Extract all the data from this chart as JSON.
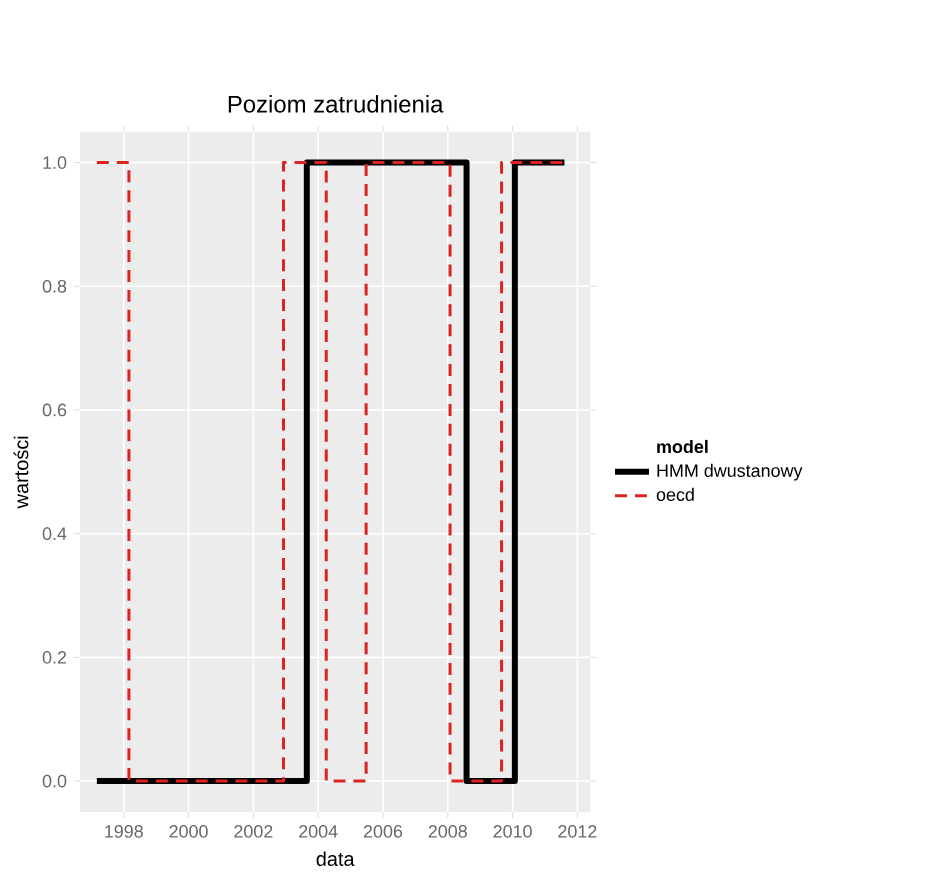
{
  "chart_data": {
    "type": "step",
    "title": "Poziom zatrudnienia",
    "xlabel": "data",
    "ylabel": "wartości",
    "legend_title": "model",
    "xlim": [
      1996.65,
      2012.4
    ],
    "ylim": [
      -0.05,
      1.05
    ],
    "xticks": [
      1998,
      2000,
      2002,
      2004,
      2006,
      2008,
      2010,
      2012
    ],
    "yticks": [
      {
        "value": 0,
        "label": "0.0"
      },
      {
        "value": 0.2,
        "label": "0.2"
      },
      {
        "value": 0.4,
        "label": "0.4"
      },
      {
        "value": 0.6,
        "label": "0.6"
      },
      {
        "value": 0.8,
        "label": "0.8"
      },
      {
        "value": 1,
        "label": "1.0"
      }
    ],
    "grid": true,
    "legend": "right",
    "series": [
      {
        "name": "HMM dwustanowy",
        "color": "#000000",
        "line_style": "solid",
        "x": [
          1997.17,
          2003.65,
          2008.58,
          2010.07,
          2011.6
        ],
        "values": [
          0,
          1,
          0,
          1,
          1
        ]
      },
      {
        "name": "oecd",
        "color": "#dd2222",
        "line_style": "dashed",
        "x": [
          1997.17,
          1998.16,
          2002.93,
          2004.25,
          2005.48,
          2008.07,
          2009.66,
          2011.6
        ],
        "values": [
          1,
          0,
          1,
          0,
          1,
          0,
          1,
          1
        ]
      }
    ]
  }
}
